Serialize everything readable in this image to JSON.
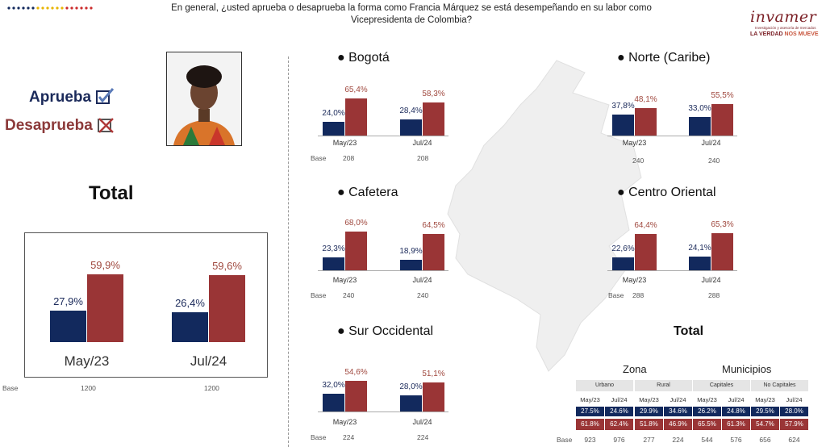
{
  "question": "En general, ¿usted aprueba o desaprueba la forma como Francia Márquez se está desempeñando en su labor como Vicepresidenta de Colombia?",
  "logo": {
    "brand": "invamer",
    "sub": "Investigación y asesoría de mercados",
    "tag1": "LA VERDAD",
    "tag2": "NOS MUEVE"
  },
  "legend": {
    "approve": "Aprueba",
    "disapprove": "Desaprueba"
  },
  "colors": {
    "approve": "#12295d",
    "disapprove": "#9a3536",
    "approve_label": "#1b2a5a",
    "disapprove_label": "#a0493f"
  },
  "icons": [
    "checked-box-icon",
    "crossed-box-icon",
    "colombia-map-icon"
  ],
  "total_title": "Total",
  "base_label": "Base",
  "chart_data": [
    {
      "type": "bar",
      "title": "Total",
      "categories": [
        "May/23",
        "Jul/24"
      ],
      "series": [
        {
          "name": "Aprueba",
          "values": [
            27.9,
            26.4
          ],
          "labels": [
            "27,9%",
            "26,4%"
          ]
        },
        {
          "name": "Desaprueba",
          "values": [
            59.9,
            59.6
          ],
          "labels": [
            "59,9%",
            "59,6%"
          ]
        }
      ],
      "base": [
        "1200",
        "1200"
      ]
    },
    {
      "type": "bar",
      "title": "Bogotá",
      "categories": [
        "May/23",
        "Jul/24"
      ],
      "series": [
        {
          "name": "Aprueba",
          "values": [
            24.0,
            28.4
          ],
          "labels": [
            "24,0%",
            "28,4%"
          ]
        },
        {
          "name": "Desaprueba",
          "values": [
            65.4,
            58.3
          ],
          "labels": [
            "65,4%",
            "58,3%"
          ]
        }
      ],
      "base": [
        "208",
        "208"
      ]
    },
    {
      "type": "bar",
      "title": "Norte (Caribe)",
      "categories": [
        "May/23",
        "Jul/24"
      ],
      "series": [
        {
          "name": "Aprueba",
          "values": [
            37.8,
            33.0
          ],
          "labels": [
            "37,8%",
            "33,0%"
          ]
        },
        {
          "name": "Desaprueba",
          "values": [
            48.1,
            55.5
          ],
          "labels": [
            "48,1%",
            "55,5%"
          ]
        }
      ],
      "base": [
        "240",
        "240"
      ]
    },
    {
      "type": "bar",
      "title": "Cafetera",
      "categories": [
        "May/23",
        "Jul/24"
      ],
      "series": [
        {
          "name": "Aprueba",
          "values": [
            23.3,
            18.9
          ],
          "labels": [
            "23,3%",
            "18,9%"
          ]
        },
        {
          "name": "Desaprueba",
          "values": [
            68.0,
            64.5
          ],
          "labels": [
            "68,0%",
            "64,5%"
          ]
        }
      ],
      "base": [
        "240",
        "240"
      ]
    },
    {
      "type": "bar",
      "title": "Centro Oriental",
      "categories": [
        "May/23",
        "Jul/24"
      ],
      "series": [
        {
          "name": "Aprueba",
          "values": [
            22.6,
            24.1
          ],
          "labels": [
            "22,6%",
            "24,1%"
          ]
        },
        {
          "name": "Desaprueba",
          "values": [
            64.4,
            65.3
          ],
          "labels": [
            "64,4%",
            "65,3%"
          ]
        }
      ],
      "base": [
        "288",
        "288"
      ]
    },
    {
      "type": "bar",
      "title": "Sur Occidental",
      "categories": [
        "May/23",
        "Jul/24"
      ],
      "series": [
        {
          "name": "Aprueba",
          "values": [
            32.0,
            28.0
          ],
          "labels": [
            "32,0%",
            "28,0%"
          ]
        },
        {
          "name": "Desaprueba",
          "values": [
            54.6,
            51.1
          ],
          "labels": [
            "54,6%",
            "51,1%"
          ]
        }
      ],
      "base": [
        "224",
        "224"
      ]
    }
  ],
  "summary_table": {
    "title": "Total",
    "zona_title": "Zona",
    "municipios_title": "Municipios",
    "groups": [
      {
        "name": "Urbano",
        "approve": [
          "27.5%",
          "24.6%"
        ],
        "disapprove": [
          "61.8%",
          "62.4%"
        ],
        "base": [
          "923",
          "976"
        ]
      },
      {
        "name": "Rural",
        "approve": [
          "29.9%",
          "34.6%"
        ],
        "disapprove": [
          "51.8%",
          "46.9%"
        ],
        "base": [
          "277",
          "224"
        ]
      },
      {
        "name": "Capitales",
        "approve": [
          "26.2%",
          "24.8%"
        ],
        "disapprove": [
          "65.5%",
          "61.3%"
        ],
        "base": [
          "544",
          "576"
        ]
      },
      {
        "name": "No Capitales",
        "approve": [
          "29.5%",
          "28.0%"
        ],
        "disapprove": [
          "54.7%",
          "57.9%"
        ],
        "base": [
          "656",
          "624"
        ]
      }
    ],
    "periods": [
      "May/23",
      "Jul/24"
    ]
  }
}
